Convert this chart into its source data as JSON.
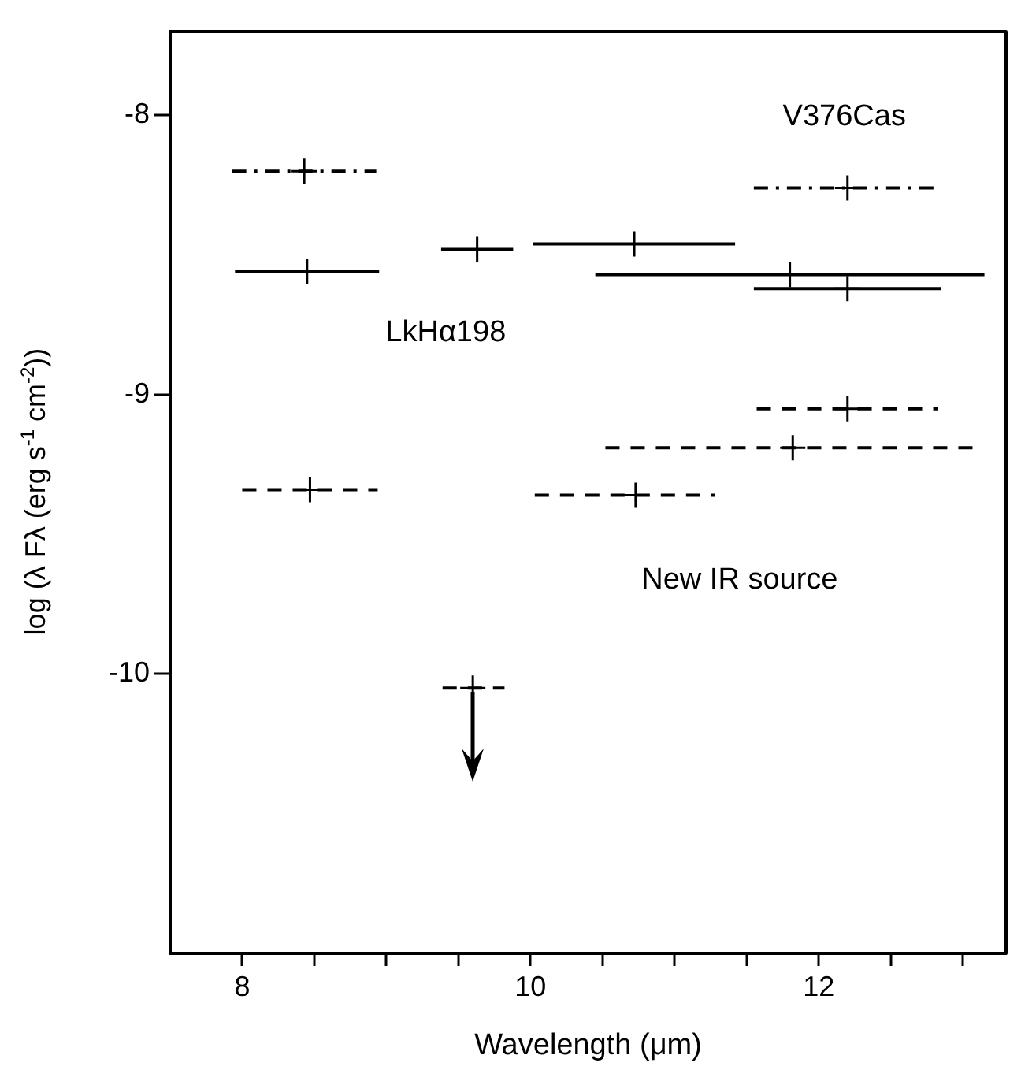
{
  "chart_data": {
    "type": "scatter",
    "xlabel": "Wavelength (μm)",
    "ylabel": "log (λ Fλ (erg s$^{-1}$ cm$^{-2}$))",
    "xlim": [
      7.5,
      13.3
    ],
    "xticks": [
      8,
      {
        "value": 8.5,
        "label": null
      },
      {
        "value": 9,
        "label": null
      },
      {
        "value": 9.5,
        "label": null
      },
      10,
      {
        "value": 10.5,
        "label": null
      },
      {
        "value": 11,
        "label": null
      },
      {
        "value": 11.5,
        "label": null
      },
      12,
      {
        "value": 12.5,
        "label": null
      },
      {
        "value": 13,
        "label": null
      }
    ],
    "ylim": [
      -11.0,
      -7.7
    ],
    "yticks": [
      -8,
      -9,
      -10
    ],
    "grid": false,
    "legend": false,
    "marker": "cross",
    "series": [
      {
        "name": "V376Cas",
        "color": "#000000",
        "line_style": "dashdot",
        "x": [
          8.43,
          12.2
        ],
        "values": [
          -8.2,
          -8.26
        ],
        "xerrors": [
          0.5,
          [
            11.55,
            12.8
          ]
        ]
      },
      {
        "name": "LkHα198",
        "color": "#000000",
        "line_style": "solid",
        "x": [
          8.45,
          9.63,
          10.72,
          11.8,
          12.2
        ],
        "values": [
          -8.56,
          -8.48,
          -8.46,
          -8.57,
          -8.62
        ],
        "xerrors": [
          0.5,
          0.25,
          0.7,
          1.35,
          0.65
        ]
      },
      {
        "name": "New IR source",
        "color": "#000000",
        "line_style": "dashed",
        "x": [
          8.47,
          10.73,
          11.82,
          12.2
        ],
        "values": [
          -9.34,
          -9.36,
          -9.19,
          -9.05
        ],
        "xerrors": [
          0.47,
          [
            10.03,
            11.28
          ],
          1.3,
          0.63
        ]
      },
      {
        "color": "#000000",
        "line_style": "dashed",
        "x": [
          9.6
        ],
        "values": [
          -10.05
        ],
        "xerrors": [
          [
            9.39,
            9.82
          ]
        ]
      }
    ]
  }
}
